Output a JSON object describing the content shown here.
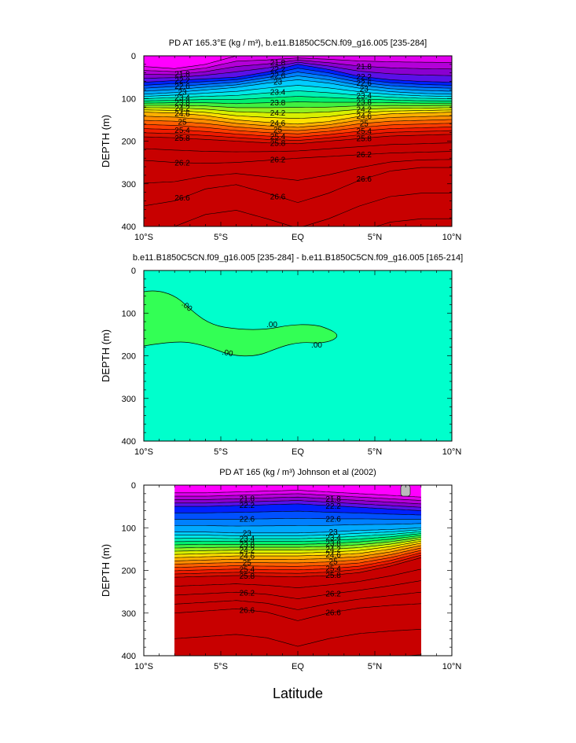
{
  "figure": {
    "xlabel": "Latitude",
    "colors": {
      "levels": [
        "#ff00ff",
        "#e000ee",
        "#b400d8",
        "#8a00d0",
        "#5a10e8",
        "#0020ff",
        "#0050ff",
        "#0080ff",
        "#00a8ff",
        "#00ccff",
        "#00e8e8",
        "#00f0b4",
        "#00f070",
        "#40f040",
        "#90f020",
        "#d8f000",
        "#ffe000",
        "#ffb000",
        "#ff8c00",
        "#ff6000",
        "#ff3c00",
        "#ee1a00",
        "#d81000",
        "#c80000"
      ],
      "diff_background": "#00ffcc",
      "diff_patch": "#33ff55",
      "missing": "#bbbbbb"
    }
  },
  "chart_data": [
    {
      "id": "model",
      "type": "contour",
      "title": "PD AT 165.3°E (kg / m³), b.e11.B1850C5CN.f09_g16.005 [235-284]",
      "xlabel": "",
      "ylabel": "DEPTH (m)",
      "xlim": [
        -10,
        10
      ],
      "ylim": [
        400,
        0
      ],
      "xticks": [
        "10°S",
        "5°S",
        "EQ",
        "5°N",
        "10°N"
      ],
      "yticks": [
        "0",
        "100",
        "200",
        "300",
        "400"
      ],
      "data_extent": [
        -10,
        10
      ],
      "contour_labels": [
        "21.8",
        "22.2",
        "22.6",
        "23",
        "23.4",
        "23.8",
        "24.2",
        "24.6",
        "25",
        "25.4",
        "25.8",
        "26.2",
        "26.6"
      ],
      "shallow_isopycnal_depths_m": {
        "lat": [
          -10,
          -8,
          -6,
          -4,
          -2,
          0,
          2,
          4,
          6,
          8,
          10
        ],
        "21.4": [
          25,
          30,
          20,
          0,
          0,
          0,
          0,
          0,
          0,
          0,
          0
        ],
        "22.2": [
          62,
          58,
          54,
          50,
          38,
          20,
          32,
          48,
          56,
          60,
          62
        ],
        "23.0": [
          90,
          86,
          80,
          74,
          64,
          56,
          64,
          76,
          84,
          88,
          90
        ],
        "24.6": [
          132,
          134,
          140,
          150,
          156,
          160,
          154,
          142,
          136,
          134,
          132
        ],
        "25.8": [
          190,
          192,
          196,
          200,
          204,
          206,
          200,
          194,
          188,
          186,
          184
        ],
        "26.2": [
          245,
          250,
          252,
          250,
          245,
          240,
          236,
          232,
          228,
          226,
          224
        ],
        "26.6": [
          352,
          340,
          312,
          302,
          322,
          344,
          322,
          292,
          270,
          262,
          262
        ]
      }
    },
    {
      "id": "difference",
      "type": "contour",
      "title": "b.e11.B1850C5CN.f09_g16.005 [235-284] - b.e11.B1850C5CN.f09_g16.005 [165-214]",
      "xlabel": "",
      "ylabel": "DEPTH (m)",
      "xlim": [
        -10,
        10
      ],
      "ylim": [
        400,
        0
      ],
      "xticks": [
        "10°S",
        "5°S",
        "EQ",
        "5°N",
        "10°N"
      ],
      "yticks": [
        "0",
        "100",
        "200",
        "300",
        "400"
      ],
      "contour_labels": [
        ".00",
        ".00",
        ".00",
        ".00"
      ],
      "positive_region": {
        "lat_range": [
          -10,
          2.5
        ],
        "depth_range_m": [
          50,
          200
        ]
      }
    },
    {
      "id": "observed",
      "type": "contour",
      "title": "PD AT 165 (kg / m³) Johnson et al (2002)",
      "xlabel": "",
      "ylabel": "DEPTH (m)",
      "xlim": [
        -10,
        10
      ],
      "ylim": [
        400,
        0
      ],
      "xticks": [
        "10°S",
        "5°S",
        "EQ",
        "5°N",
        "10°N"
      ],
      "yticks": [
        "0",
        "100",
        "200",
        "300",
        "400"
      ],
      "data_extent": [
        -8,
        8
      ],
      "contour_labels": [
        "21.8",
        "22.2",
        "22.6",
        "23",
        "23.4",
        "23.8",
        "24.2",
        "24.6",
        "25",
        "25.4",
        "25.8",
        "26.2",
        "26.6"
      ],
      "shallow_isopycnal_depths_m": {
        "lat": [
          -8,
          -6,
          -4,
          -2,
          0,
          2,
          4,
          6,
          8
        ],
        "22.2": [
          50,
          50,
          48,
          46,
          44,
          48,
          52,
          56,
          60
        ],
        "23.0": [
          110,
          110,
          112,
          112,
          112,
          110,
          106,
          104,
          100
        ],
        "24.6": [
          170,
          168,
          166,
          166,
          166,
          164,
          160,
          150,
          136
        ],
        "25.8": [
          216,
          214,
          212,
          214,
          215,
          212,
          205,
          190,
          170
        ],
        "26.6": [
          300,
          295,
          290,
          298,
          318,
          300,
          288,
          282,
          278
        ]
      }
    }
  ]
}
